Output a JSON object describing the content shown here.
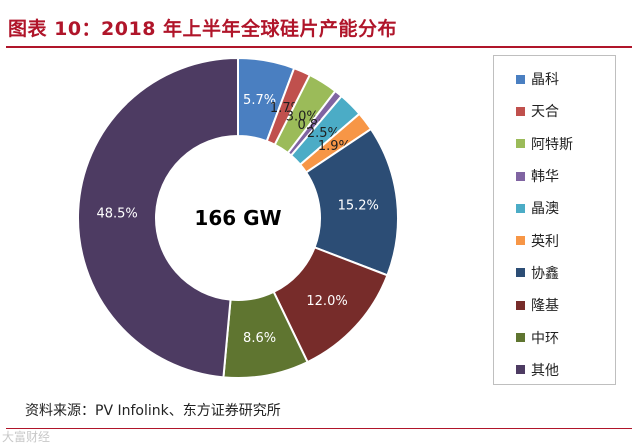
{
  "title": "图表 10：2018 年上半年全球硅片产能分布",
  "center_label": "166 GW",
  "source": "资料来源：PV Infolink、东方证券研究所",
  "watermark": "大富财经",
  "chart_data": {
    "type": "pie",
    "variant": "donut",
    "legend_position": "right",
    "categories": [
      "晶科",
      "天合",
      "阿特斯",
      "韩华",
      "晶澳",
      "英利",
      "协鑫",
      "隆基",
      "中环",
      "其他"
    ],
    "values": [
      5.7,
      1.7,
      3.0,
      0.8,
      2.5,
      1.9,
      15.2,
      12.0,
      8.6,
      48.5
    ],
    "labels": [
      "5.7%",
      "1.7%",
      "3.0%",
      "0.8%",
      "2.5%",
      "1.9%",
      "15.2%",
      "12.0%",
      "8.6%",
      "48.5%"
    ],
    "colors": [
      "#4a7fc1",
      "#c0504d",
      "#9bbb59",
      "#8064a2",
      "#4bacc6",
      "#f79646",
      "#2c4d75",
      "#772c2a",
      "#5f7530",
      "#4d3b62"
    ]
  }
}
